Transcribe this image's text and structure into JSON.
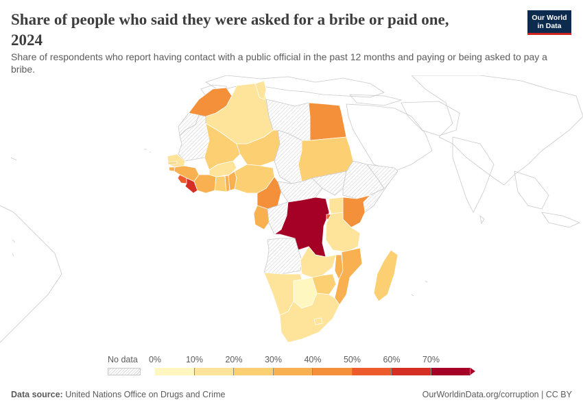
{
  "header": {
    "title": "Share of people who said they were asked for a bribe or paid one, 2024",
    "subtitle": "Share of respondents who report having contact with a public official in the past 12 months and paying or being asked to pay a bribe."
  },
  "logo": {
    "line1": "Our World",
    "line2": "in Data"
  },
  "legend": {
    "no_data_label": "No data",
    "ticks": [
      "0%",
      "10%",
      "20%",
      "30%",
      "40%",
      "50%",
      "60%",
      "70%"
    ],
    "colors": [
      "#fff7bf",
      "#fde49a",
      "#fcd072",
      "#f8b050",
      "#f48f3a",
      "#ed5a2b",
      "#d52e25",
      "#a50026"
    ]
  },
  "map": {
    "no_data_color": "#ececec",
    "countries": [
      {
        "name": "Morocco",
        "bin": 4
      },
      {
        "name": "Algeria",
        "bin": 1
      },
      {
        "name": "Tunisia",
        "bin": 1
      },
      {
        "name": "Libya",
        "bin": null
      },
      {
        "name": "Egypt",
        "bin": 4
      },
      {
        "name": "Western Sahara",
        "bin": null
      },
      {
        "name": "Mauritania",
        "bin": null
      },
      {
        "name": "Mali",
        "bin": 2
      },
      {
        "name": "Niger",
        "bin": 2
      },
      {
        "name": "Chad",
        "bin": null
      },
      {
        "name": "Sudan",
        "bin": 2
      },
      {
        "name": "Senegal",
        "bin": 1
      },
      {
        "name": "Gambia",
        "bin": 2
      },
      {
        "name": "Guinea-Bissau",
        "bin": 3
      },
      {
        "name": "Guinea",
        "bin": 3
      },
      {
        "name": "Sierra Leone",
        "bin": 5
      },
      {
        "name": "Liberia",
        "bin": 6
      },
      {
        "name": "Cote d'Ivoire",
        "bin": 3
      },
      {
        "name": "Burkina Faso",
        "bin": 1
      },
      {
        "name": "Ghana",
        "bin": 2
      },
      {
        "name": "Togo",
        "bin": 3
      },
      {
        "name": "Benin",
        "bin": 3
      },
      {
        "name": "Nigeria",
        "bin": 2
      },
      {
        "name": "Cameroon",
        "bin": 4
      },
      {
        "name": "Central African Republic",
        "bin": null
      },
      {
        "name": "South Sudan",
        "bin": null
      },
      {
        "name": "Ethiopia",
        "bin": null
      },
      {
        "name": "Somalia",
        "bin": null
      },
      {
        "name": "Gabon",
        "bin": 3
      },
      {
        "name": "Congo",
        "bin": null
      },
      {
        "name": "Democratic Republic of Congo",
        "bin": 7
      },
      {
        "name": "Uganda",
        "bin": 1
      },
      {
        "name": "Kenya",
        "bin": 4
      },
      {
        "name": "Rwanda",
        "bin": 5
      },
      {
        "name": "Tanzania",
        "bin": 1
      },
      {
        "name": "Angola",
        "bin": null
      },
      {
        "name": "Zambia",
        "bin": 1
      },
      {
        "name": "Malawi",
        "bin": 3
      },
      {
        "name": "Mozambique",
        "bin": 3
      },
      {
        "name": "Zimbabwe",
        "bin": 2
      },
      {
        "name": "Namibia",
        "bin": 1
      },
      {
        "name": "Botswana",
        "bin": 0
      },
      {
        "name": "South Africa",
        "bin": 1
      },
      {
        "name": "Lesotho",
        "bin": 1
      },
      {
        "name": "Madagascar",
        "bin": 2
      }
    ]
  },
  "footer": {
    "source_label": "Data source:",
    "source_text": "United Nations Office on Drugs and Crime",
    "right_text": "OurWorldinData.org/corruption | CC BY"
  }
}
